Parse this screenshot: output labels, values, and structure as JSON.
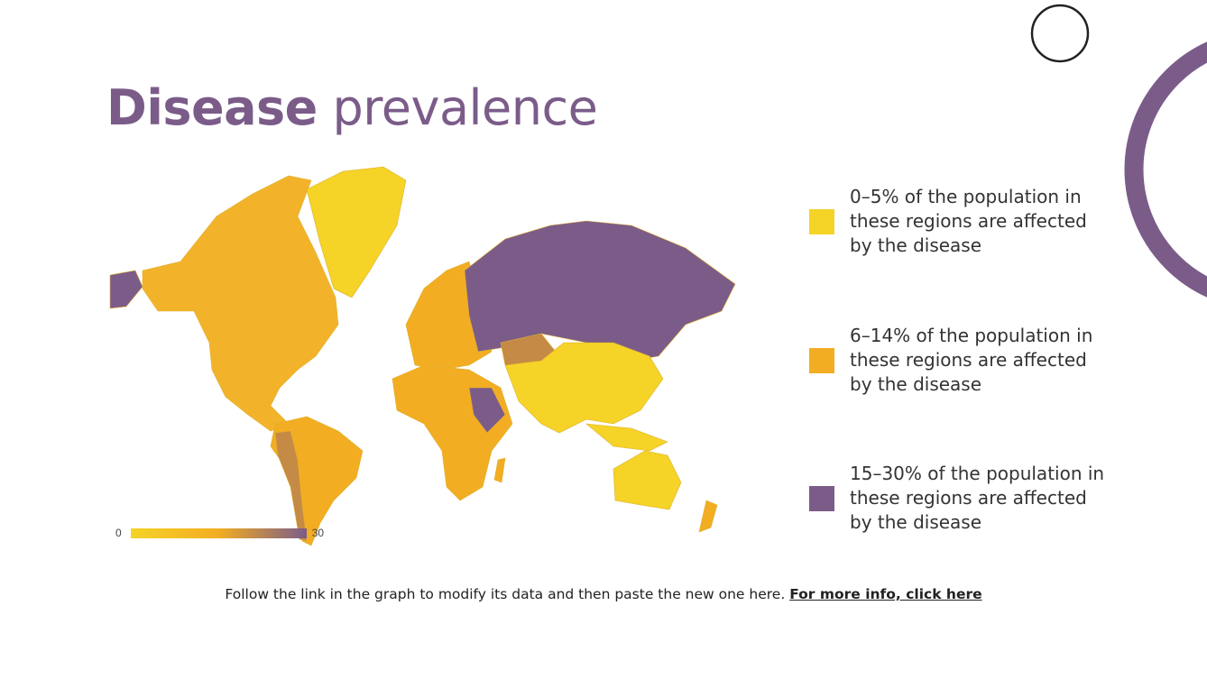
{
  "title": {
    "bold": "Disease",
    "light": "prevalence"
  },
  "colors": {
    "accent": "#7b5c89",
    "low": "#f5d327",
    "mid": "#f2ad22",
    "high": "#7b5c89",
    "mixed": "#c48a46"
  },
  "map": {
    "scale": {
      "min_label": "0",
      "max_label": "30"
    },
    "regions": [
      {
        "name": "North America",
        "level": "mid"
      },
      {
        "name": "Greenland",
        "level": "low"
      },
      {
        "name": "South America",
        "level": "mid"
      },
      {
        "name": "Europe",
        "level": "mid"
      },
      {
        "name": "Russia",
        "level": "high"
      },
      {
        "name": "Africa",
        "level": "mid"
      },
      {
        "name": "Asia",
        "level": "low"
      },
      {
        "name": "Australia",
        "level": "low"
      }
    ]
  },
  "legend": [
    {
      "text": "0–5% of the population in these regions are affected by the disease",
      "color": "#f5d327"
    },
    {
      "text": "6–14% of the population in these regions are affected by the disease",
      "color": "#f2ad22"
    },
    {
      "text": "15–30% of the population in these regions are affected by the disease",
      "color": "#7b5c89"
    }
  ],
  "footer": {
    "text": "Follow the link in the graph to modify its data and then paste the new one here. ",
    "link": "For more info, click here"
  }
}
